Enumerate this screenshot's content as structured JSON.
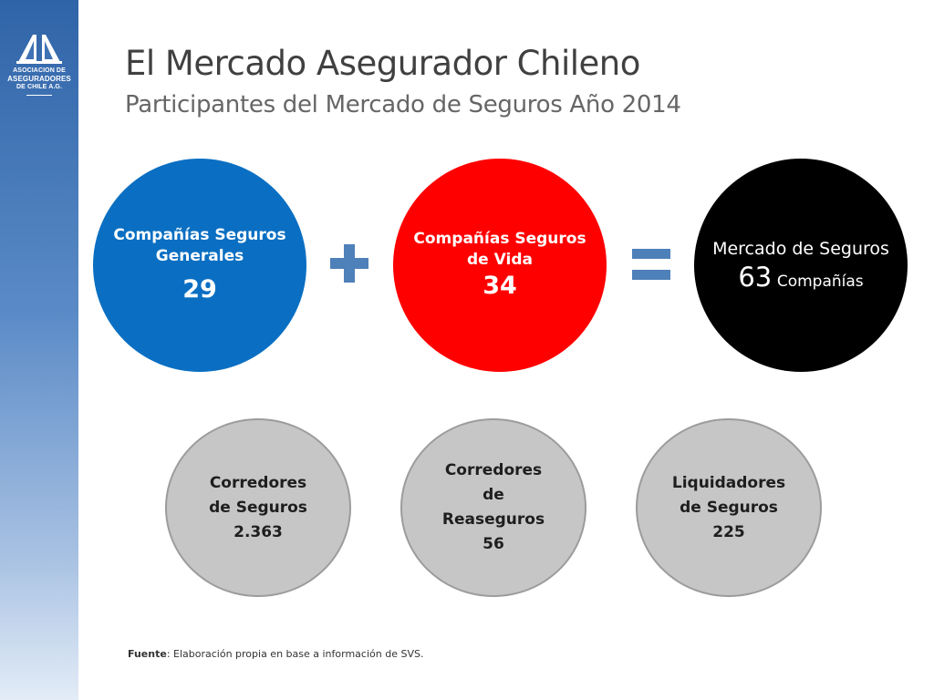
{
  "logo": {
    "line1": "ASOCIACION DE",
    "line2": "ASEGURADORES",
    "line3": "DE CHILE A.G."
  },
  "header": {
    "title": "El Mercado Asegurador Chileno",
    "subtitle": "Participantes del Mercado de Seguros Año 2014"
  },
  "companies": [
    {
      "label": "Compañías Seguros Generales",
      "count": "29",
      "color": "#0a6fc2"
    },
    {
      "label": "Compañías Seguros de Vida",
      "count": "34",
      "color": "#ff0000"
    }
  ],
  "total": {
    "label": "Mercado de Seguros",
    "count": "63",
    "unit": "Compañías",
    "color": "#000000"
  },
  "operators": {
    "color": "#4e80b9",
    "plus": "plus",
    "equals": "equals"
  },
  "intermediaries": [
    {
      "line1": "Corredores",
      "line2": "de Seguros",
      "count": "2.363"
    },
    {
      "line1": "Corredores",
      "line2": "de",
      "line3": "Reaseguros",
      "count": "56"
    },
    {
      "line1": "Liquidadores",
      "line2": "de Seguros",
      "count": "225"
    }
  ],
  "footer": {
    "source_label": "Fuente",
    "source_text": ": Elaboración propia en base a información de SVS."
  }
}
